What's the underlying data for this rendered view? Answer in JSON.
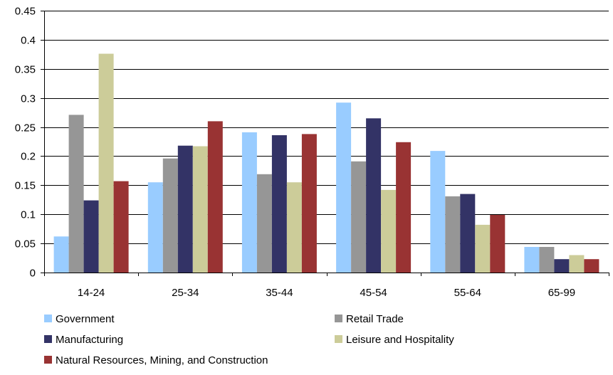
{
  "chart_data": {
    "type": "bar",
    "title": "",
    "xlabel": "",
    "ylabel": "",
    "categories": [
      "14-24",
      "25-34",
      "35-44",
      "45-54",
      "55-64",
      "65-99"
    ],
    "ylim": [
      0,
      0.45
    ],
    "yticks": [
      "0",
      "0.05",
      "0.1",
      "0.15",
      "0.2",
      "0.25",
      "0.3",
      "0.35",
      "0.4",
      "0.45"
    ],
    "grid": true,
    "legend_position": "bottom",
    "series": [
      {
        "name": "Government",
        "color": "#99CCFF",
        "values": [
          0.062,
          0.155,
          0.241,
          0.292,
          0.209,
          0.044
        ]
      },
      {
        "name": "Retail Trade",
        "color": "#969696",
        "values": [
          0.271,
          0.196,
          0.169,
          0.191,
          0.131,
          0.044
        ]
      },
      {
        "name": "Manufacturing",
        "color": "#333366",
        "values": [
          0.124,
          0.218,
          0.236,
          0.265,
          0.135,
          0.023
        ]
      },
      {
        "name": "Leisure and Hospitality",
        "color": "#CCCC99",
        "values": [
          0.376,
          0.217,
          0.155,
          0.142,
          0.082,
          0.03
        ]
      },
      {
        "name": "Natural Resources, Mining, and Construction",
        "color": "#993333",
        "values": [
          0.157,
          0.26,
          0.238,
          0.224,
          0.099,
          0.023
        ]
      }
    ]
  }
}
